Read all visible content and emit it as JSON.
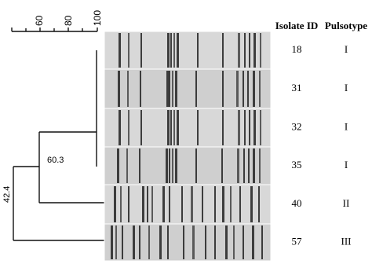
{
  "scale": {
    "ticks": [
      "60",
      "80",
      "100"
    ]
  },
  "nodes": [
    {
      "label": "60.3"
    },
    {
      "label": "42.4"
    }
  ],
  "table": {
    "headers": [
      "Isolate ID",
      "Pulsotype"
    ],
    "rows": [
      [
        "18",
        "I"
      ],
      [
        "31",
        "I"
      ],
      [
        "32",
        "I"
      ],
      [
        "35",
        "I"
      ],
      [
        "40",
        "II"
      ],
      [
        "57",
        "III"
      ]
    ]
  }
}
